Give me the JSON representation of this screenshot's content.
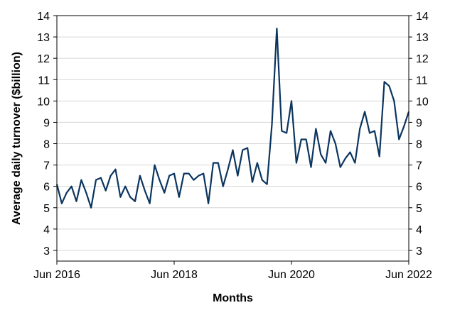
{
  "chart_data": {
    "type": "line",
    "title": "",
    "xlabel": "Months",
    "ylabel": "Average daily turnover ($billion)",
    "ylim": [
      2.5,
      14
    ],
    "yticks": [
      3,
      4,
      5,
      6,
      7,
      8,
      9,
      10,
      11,
      12,
      13,
      14
    ],
    "x_axis": {
      "start": "Jun 2016",
      "end": "Jun 2022",
      "tick_labels": [
        "Jun 2016",
        "Jun 2018",
        "Jun 2020",
        "Jun 2022"
      ]
    },
    "grid": "horizontal",
    "legend": "none",
    "line_color": "#0b3560",
    "series": [
      {
        "x": [
          "2016-06",
          "2016-07",
          "2016-08",
          "2016-09",
          "2016-10",
          "2016-11",
          "2016-12",
          "2017-01",
          "2017-02",
          "2017-03",
          "2017-04",
          "2017-05",
          "2017-06",
          "2017-07",
          "2017-08",
          "2017-09",
          "2017-10",
          "2017-11",
          "2017-12",
          "2018-01",
          "2018-02",
          "2018-03",
          "2018-04",
          "2018-05",
          "2018-06",
          "2018-07",
          "2018-08",
          "2018-09",
          "2018-10",
          "2018-11",
          "2018-12",
          "2019-01",
          "2019-02",
          "2019-03",
          "2019-04",
          "2019-05",
          "2019-06",
          "2019-07",
          "2019-08",
          "2019-09",
          "2019-10",
          "2019-11",
          "2019-12",
          "2020-01",
          "2020-02",
          "2020-03",
          "2020-04",
          "2020-05",
          "2020-06",
          "2020-07",
          "2020-08",
          "2020-09",
          "2020-10",
          "2020-11",
          "2020-12",
          "2021-01",
          "2021-02",
          "2021-03",
          "2021-04",
          "2021-05",
          "2021-06",
          "2021-07",
          "2021-08",
          "2021-09",
          "2021-10",
          "2021-11",
          "2021-12",
          "2022-01",
          "2022-02",
          "2022-03",
          "2022-04",
          "2022-05",
          "2022-06"
        ],
        "values": [
          6.1,
          5.2,
          5.7,
          6.0,
          5.3,
          6.3,
          5.7,
          5.0,
          6.3,
          6.4,
          5.8,
          6.5,
          6.8,
          5.5,
          6.0,
          5.5,
          5.3,
          6.5,
          5.8,
          5.2,
          7.0,
          6.3,
          5.7,
          6.5,
          6.6,
          5.5,
          6.6,
          6.6,
          6.3,
          6.5,
          6.6,
          5.2,
          7.1,
          7.1,
          6.0,
          6.8,
          7.7,
          6.5,
          7.7,
          7.8,
          6.2,
          7.1,
          6.3,
          6.1,
          8.9,
          13.4,
          8.6,
          8.5,
          10.0,
          7.1,
          8.2,
          8.2,
          6.9,
          8.7,
          7.5,
          7.1,
          8.6,
          8.0,
          6.9,
          7.3,
          7.6,
          7.1,
          8.7,
          9.5,
          8.5,
          8.6,
          7.4,
          10.9,
          10.7,
          10.0,
          8.2,
          8.8,
          9.5
        ]
      }
    ]
  }
}
